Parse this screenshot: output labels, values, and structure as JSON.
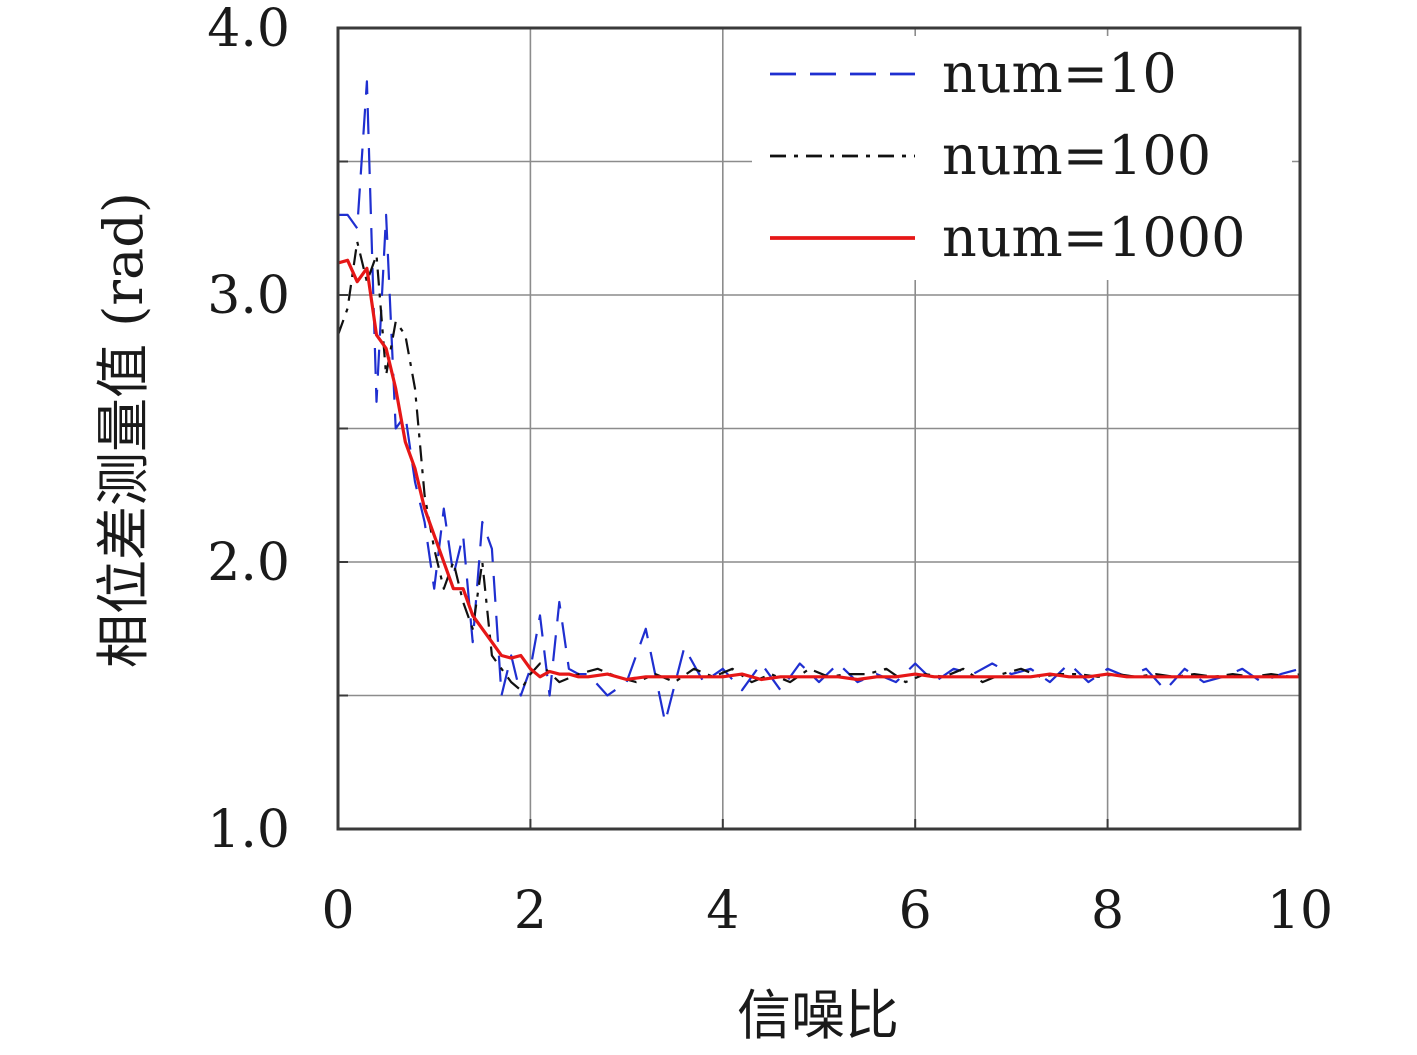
{
  "chart_data": {
    "type": "line",
    "xlabel": "信噪比",
    "ylabel": "相位差测量值 (rad)",
    "xlim": [
      0,
      10
    ],
    "ylim": [
      1.0,
      4.0
    ],
    "x_ticks": [
      "0",
      "2",
      "4",
      "6",
      "8",
      "10"
    ],
    "y_ticks": [
      "1.0",
      "2.0",
      "3.0",
      "4.0"
    ],
    "grid": true,
    "legend_position": "top-right",
    "series": [
      {
        "name": "num=10",
        "color": "#1f2fd0",
        "style": "dashed",
        "x": [
          0,
          0.1,
          0.2,
          0.3,
          0.4,
          0.5,
          0.6,
          0.7,
          0.8,
          0.9,
          1.0,
          1.1,
          1.2,
          1.3,
          1.4,
          1.5,
          1.6,
          1.7,
          1.8,
          1.9,
          2.0,
          2.1,
          2.2,
          2.3,
          2.4,
          2.5,
          2.6,
          2.8,
          3.0,
          3.2,
          3.4,
          3.6,
          3.8,
          4.0,
          4.2,
          4.4,
          4.6,
          4.8,
          5.0,
          5.2,
          5.4,
          5.6,
          5.8,
          6.0,
          6.2,
          6.4,
          6.6,
          6.8,
          7.0,
          7.2,
          7.4,
          7.6,
          7.8,
          8.0,
          8.2,
          8.4,
          8.6,
          8.8,
          9.0,
          9.2,
          9.4,
          9.6,
          9.8,
          10.0
        ],
        "y": [
          3.3,
          3.3,
          3.25,
          3.8,
          2.6,
          3.3,
          2.5,
          2.55,
          2.3,
          2.15,
          1.9,
          2.2,
          1.95,
          2.1,
          1.7,
          2.15,
          2.05,
          1.5,
          1.65,
          1.5,
          1.6,
          1.8,
          1.5,
          1.85,
          1.6,
          1.58,
          1.58,
          1.5,
          1.55,
          1.75,
          1.4,
          1.68,
          1.55,
          1.6,
          1.52,
          1.62,
          1.52,
          1.62,
          1.55,
          1.62,
          1.55,
          1.58,
          1.55,
          1.62,
          1.55,
          1.6,
          1.58,
          1.62,
          1.58,
          1.6,
          1.55,
          1.62,
          1.55,
          1.6,
          1.57,
          1.6,
          1.52,
          1.6,
          1.55,
          1.57,
          1.6,
          1.55,
          1.58,
          1.6
        ]
      },
      {
        "name": "num=100",
        "color": "#111111",
        "style": "dashdot",
        "x": [
          0,
          0.1,
          0.2,
          0.3,
          0.4,
          0.5,
          0.6,
          0.7,
          0.8,
          0.9,
          1.0,
          1.1,
          1.2,
          1.3,
          1.4,
          1.5,
          1.6,
          1.7,
          1.8,
          1.9,
          2.0,
          2.1,
          2.3,
          2.5,
          2.7,
          2.9,
          3.1,
          3.3,
          3.5,
          3.7,
          3.9,
          4.1,
          4.3,
          4.5,
          4.7,
          4.9,
          5.1,
          5.3,
          5.5,
          5.7,
          5.9,
          6.1,
          6.3,
          6.5,
          6.7,
          6.9,
          7.1,
          7.3,
          7.5,
          7.7,
          7.9,
          8.1,
          8.3,
          8.5,
          8.7,
          8.9,
          9.1,
          9.3,
          9.5,
          9.7,
          9.9,
          10.0
        ],
        "y": [
          2.85,
          2.95,
          3.2,
          3.05,
          3.15,
          2.7,
          2.9,
          2.85,
          2.65,
          2.25,
          2.05,
          1.9,
          2.0,
          1.85,
          1.75,
          2.0,
          1.65,
          1.6,
          1.55,
          1.52,
          1.58,
          1.62,
          1.55,
          1.58,
          1.6,
          1.57,
          1.55,
          1.58,
          1.55,
          1.6,
          1.57,
          1.6,
          1.55,
          1.58,
          1.55,
          1.6,
          1.57,
          1.58,
          1.58,
          1.6,
          1.55,
          1.58,
          1.57,
          1.6,
          1.55,
          1.58,
          1.6,
          1.57,
          1.58,
          1.58,
          1.57,
          1.58,
          1.57,
          1.58,
          1.57,
          1.58,
          1.57,
          1.58,
          1.57,
          1.58,
          1.57,
          1.58
        ]
      },
      {
        "name": "num=1000",
        "color": "#e61717",
        "style": "solid",
        "x": [
          0,
          0.1,
          0.2,
          0.3,
          0.4,
          0.5,
          0.6,
          0.7,
          0.8,
          0.9,
          1.0,
          1.1,
          1.2,
          1.3,
          1.4,
          1.5,
          1.6,
          1.7,
          1.8,
          1.9,
          2.0,
          2.1,
          2.2,
          2.3,
          2.4,
          2.5,
          2.6,
          2.8,
          3.0,
          3.2,
          3.4,
          3.6,
          3.8,
          4.0,
          4.2,
          4.4,
          4.6,
          4.8,
          5.0,
          5.2,
          5.4,
          5.6,
          5.8,
          6.0,
          6.2,
          6.4,
          6.6,
          6.8,
          7.0,
          7.2,
          7.4,
          7.6,
          7.8,
          8.0,
          8.2,
          8.4,
          8.6,
          8.8,
          9.0,
          9.2,
          9.4,
          9.6,
          9.8,
          10.0
        ],
        "y": [
          3.12,
          3.13,
          3.05,
          3.1,
          2.85,
          2.8,
          2.65,
          2.45,
          2.35,
          2.2,
          2.1,
          2.0,
          1.9,
          1.9,
          1.8,
          1.75,
          1.7,
          1.65,
          1.64,
          1.65,
          1.6,
          1.57,
          1.59,
          1.58,
          1.58,
          1.57,
          1.57,
          1.58,
          1.56,
          1.57,
          1.57,
          1.57,
          1.57,
          1.57,
          1.58,
          1.56,
          1.57,
          1.57,
          1.57,
          1.57,
          1.56,
          1.57,
          1.57,
          1.58,
          1.57,
          1.57,
          1.57,
          1.57,
          1.57,
          1.57,
          1.58,
          1.57,
          1.57,
          1.58,
          1.57,
          1.57,
          1.57,
          1.57,
          1.57,
          1.57,
          1.57,
          1.57,
          1.57,
          1.57
        ]
      }
    ]
  }
}
